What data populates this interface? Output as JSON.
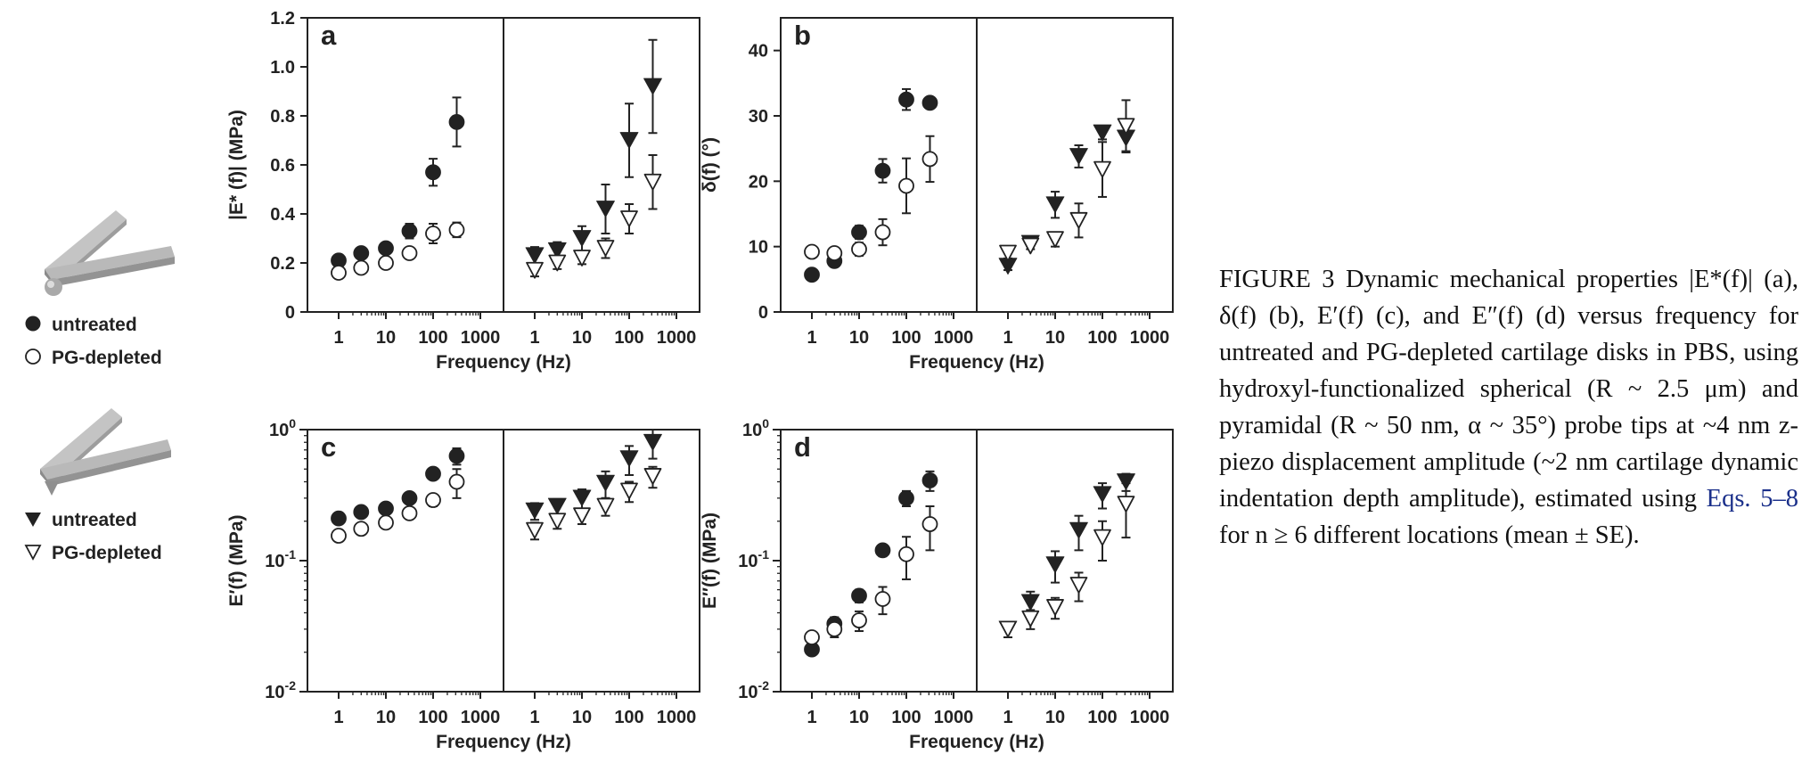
{
  "legend": {
    "untreated_label": "untreated",
    "pg_depleted_label": "PG-depleted"
  },
  "caption": {
    "figure_label": "FIGURE 3",
    "text_1": "Dynamic mechanical properties |E*(f)| (a), δ(f) (b), E′(f) (c), and E″(f) (d) versus frequency for untreated and PG-depleted cartilage disks in PBS, using hydroxyl-functionalized spherical (R ~ 2.5 μm) and pyramidal (R ~ 50 nm, α ~ 35°) probe tips at ~4 nm z-piezo displacement amplitude (~2 nm cartilage dynamic indentation depth amplitude), estimated using",
    "link": "Eqs. 5–8",
    "text_2": "for n ≥ 6 different locations (mean ± SE)."
  },
  "colors": {
    "ink": "#222222",
    "tip_gray": "#b5b5b5"
  },
  "chart_data": [
    {
      "type": "scatter",
      "panel": "a",
      "ylabel": "|E* (f)| (MPa)",
      "xlabel": "Frequency (Hz)",
      "yscale": "linear",
      "ylim": [
        0,
        1.2
      ],
      "yticks": [
        "0",
        "0.2",
        "0.4",
        "0.6",
        "0.8",
        "1.0",
        "1.2"
      ],
      "xticks": [
        "1",
        "10",
        "100",
        "1000"
      ],
      "x": [
        1,
        3,
        10,
        31.6,
        100,
        316
      ],
      "series": [
        {
          "name": "untreated",
          "tip": "spherical",
          "marker": "filled-circle",
          "values": [
            0.21,
            0.24,
            0.26,
            0.33,
            0.57,
            0.775
          ],
          "errors": [
            0.02,
            0.02,
            0.02,
            0.03,
            0.055,
            0.1
          ]
        },
        {
          "name": "PG-depleted",
          "tip": "spherical",
          "marker": "open-circle",
          "values": [
            0.16,
            0.18,
            0.2,
            0.24,
            0.32,
            0.335
          ],
          "errors": [
            0.015,
            0.015,
            0.015,
            0.02,
            0.04,
            0.03
          ]
        },
        {
          "name": "untreated",
          "tip": "pyramidal",
          "marker": "filled-triangle-down",
          "values": [
            0.23,
            0.25,
            0.3,
            0.42,
            0.7,
            0.92
          ],
          "errors": [
            0.035,
            0.035,
            0.05,
            0.1,
            0.15,
            0.19
          ]
        },
        {
          "name": "PG-depleted",
          "tip": "pyramidal",
          "marker": "open-triangle-down",
          "values": [
            0.17,
            0.2,
            0.22,
            0.26,
            0.38,
            0.53
          ],
          "errors": [
            0.025,
            0.025,
            0.025,
            0.04,
            0.06,
            0.11
          ]
        }
      ]
    },
    {
      "type": "scatter",
      "panel": "b",
      "ylabel": "δ(f) (°)",
      "xlabel": "Frequency (Hz)",
      "yscale": "linear",
      "ylim": [
        0,
        45
      ],
      "yticks": [
        "0",
        "10",
        "20",
        "30",
        "40"
      ],
      "xticks": [
        "1",
        "10",
        "100",
        "1000"
      ],
      "x": [
        1,
        3,
        10,
        31.6,
        100,
        316
      ],
      "series": [
        {
          "name": "untreated",
          "tip": "spherical",
          "marker": "filled-circle",
          "values": [
            5.7,
            7.8,
            12.2,
            21.6,
            32.5,
            32.0
          ],
          "errors": [
            0.5,
            0.6,
            1.0,
            1.8,
            1.6,
            0.8
          ]
        },
        {
          "name": "PG-depleted",
          "tip": "spherical",
          "marker": "open-circle",
          "values": [
            9.2,
            9.0,
            9.6,
            12.2,
            19.3,
            23.4
          ],
          "errors": [
            0.7,
            0.8,
            1.0,
            2.0,
            4.2,
            3.5
          ]
        },
        {
          "name": "untreated",
          "tip": "pyramidal",
          "marker": "filled-triangle-down",
          "values": [
            7.0,
            10.5,
            16.4,
            23.8,
            27.4,
            26.6
          ],
          "errors": [
            0.6,
            0.4,
            2.0,
            1.7,
            1.0,
            2.0
          ]
        },
        {
          "name": "PG-depleted",
          "tip": "pyramidal",
          "marker": "open-triangle-down",
          "values": [
            9.0,
            10.1,
            11.1,
            14.0,
            21.8,
            28.4
          ],
          "errors": [
            0.8,
            0.5,
            1.1,
            2.6,
            4.2,
            4.0
          ]
        }
      ]
    },
    {
      "type": "scatter",
      "panel": "c",
      "ylabel": "E′(f) (MPa)",
      "xlabel": "Frequency (Hz)",
      "yscale": "log",
      "ylim": [
        0.01,
        1
      ],
      "yticks": [
        "10-2",
        "10-1",
        "100"
      ],
      "xticks": [
        "1",
        "10",
        "100",
        "1000"
      ],
      "x": [
        1,
        3,
        10,
        31.6,
        100,
        316
      ],
      "series": [
        {
          "name": "untreated",
          "tip": "spherical",
          "marker": "filled-circle",
          "values": [
            0.21,
            0.235,
            0.25,
            0.3,
            0.46,
            0.63
          ],
          "errors": [
            0.02,
            0.02,
            0.02,
            0.025,
            0.04,
            0.09
          ]
        },
        {
          "name": "PG-depleted",
          "tip": "spherical",
          "marker": "open-circle",
          "values": [
            0.155,
            0.175,
            0.195,
            0.23,
            0.29,
            0.4
          ],
          "errors": [
            0.01,
            0.012,
            0.015,
            0.02,
            0.03,
            0.1
          ]
        },
        {
          "name": "untreated",
          "tip": "pyramidal",
          "marker": "filled-triangle-down",
          "values": [
            0.24,
            0.26,
            0.3,
            0.39,
            0.6,
            0.8
          ],
          "errors": [
            0.035,
            0.035,
            0.05,
            0.09,
            0.15,
            0.2
          ]
        },
        {
          "name": "PG-depleted",
          "tip": "pyramidal",
          "marker": "open-triangle-down",
          "values": [
            0.17,
            0.2,
            0.22,
            0.26,
            0.34,
            0.44
          ],
          "errors": [
            0.025,
            0.025,
            0.03,
            0.04,
            0.06,
            0.08
          ]
        }
      ]
    },
    {
      "type": "scatter",
      "panel": "d",
      "ylabel": "E″(f) (MPa)",
      "xlabel": "Frequency (Hz)",
      "yscale": "log",
      "ylim": [
        0.01,
        1
      ],
      "yticks": [
        "10-2",
        "10-1",
        "100"
      ],
      "xticks": [
        "1",
        "10",
        "100",
        "1000"
      ],
      "x": [
        1,
        3,
        10,
        31.6,
        100,
        316
      ],
      "series": [
        {
          "name": "untreated",
          "tip": "spherical",
          "marker": "filled-circle",
          "values": [
            0.021,
            0.033,
            0.054,
            0.12,
            0.3,
            0.41
          ],
          "errors": [
            0.002,
            0.004,
            0.006,
            0.012,
            0.04,
            0.07
          ]
        },
        {
          "name": "PG-depleted",
          "tip": "spherical",
          "marker": "open-circle",
          "values": [
            0.026,
            0.03,
            0.035,
            0.051,
            0.112,
            0.19
          ],
          "errors": [
            0.002,
            0.004,
            0.006,
            0.012,
            0.04,
            0.07
          ]
        },
        {
          "name": "untreated",
          "tip": "pyramidal",
          "marker": "filled-triangle-down",
          "values": [
            0.03,
            0.048,
            0.093,
            0.17,
            0.32,
            0.4
          ],
          "errors": [
            0.004,
            0.01,
            0.025,
            0.05,
            0.07,
            0.06
          ]
        },
        {
          "name": "PG-depleted",
          "tip": "pyramidal",
          "marker": "open-triangle-down",
          "values": [
            0.03,
            0.036,
            0.044,
            0.065,
            0.15,
            0.27
          ],
          "errors": [
            0.004,
            0.006,
            0.008,
            0.016,
            0.05,
            0.12
          ]
        }
      ]
    }
  ]
}
